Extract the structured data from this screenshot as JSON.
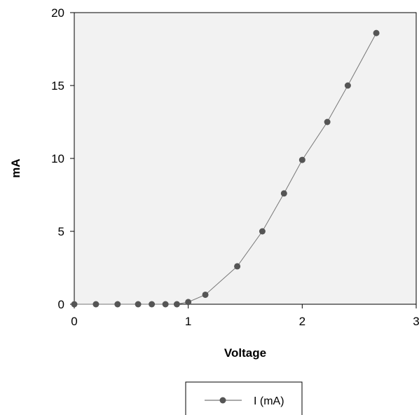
{
  "chart_data": {
    "type": "line",
    "title": "",
    "xlabel": "Voltage",
    "ylabel": "mA",
    "xlim": [
      0,
      3
    ],
    "ylim": [
      0,
      20
    ],
    "x_ticks": [
      "0",
      "1",
      "2",
      "3"
    ],
    "y_ticks": [
      "0",
      "5",
      "10",
      "15",
      "20"
    ],
    "grid": false,
    "legend_position": "bottom-center",
    "series": [
      {
        "name": "I (mA)",
        "color": "#555555",
        "x": [
          0,
          0.19,
          0.38,
          0.56,
          0.68,
          0.8,
          0.9,
          1.0,
          1.15,
          1.43,
          1.65,
          1.84,
          2.0,
          2.22,
          2.4,
          2.65
        ],
        "y": [
          0,
          0,
          0,
          0,
          0,
          0,
          0,
          0.15,
          0.65,
          2.6,
          5.0,
          7.6,
          9.9,
          12.5,
          15.0,
          18.6
        ]
      }
    ]
  }
}
